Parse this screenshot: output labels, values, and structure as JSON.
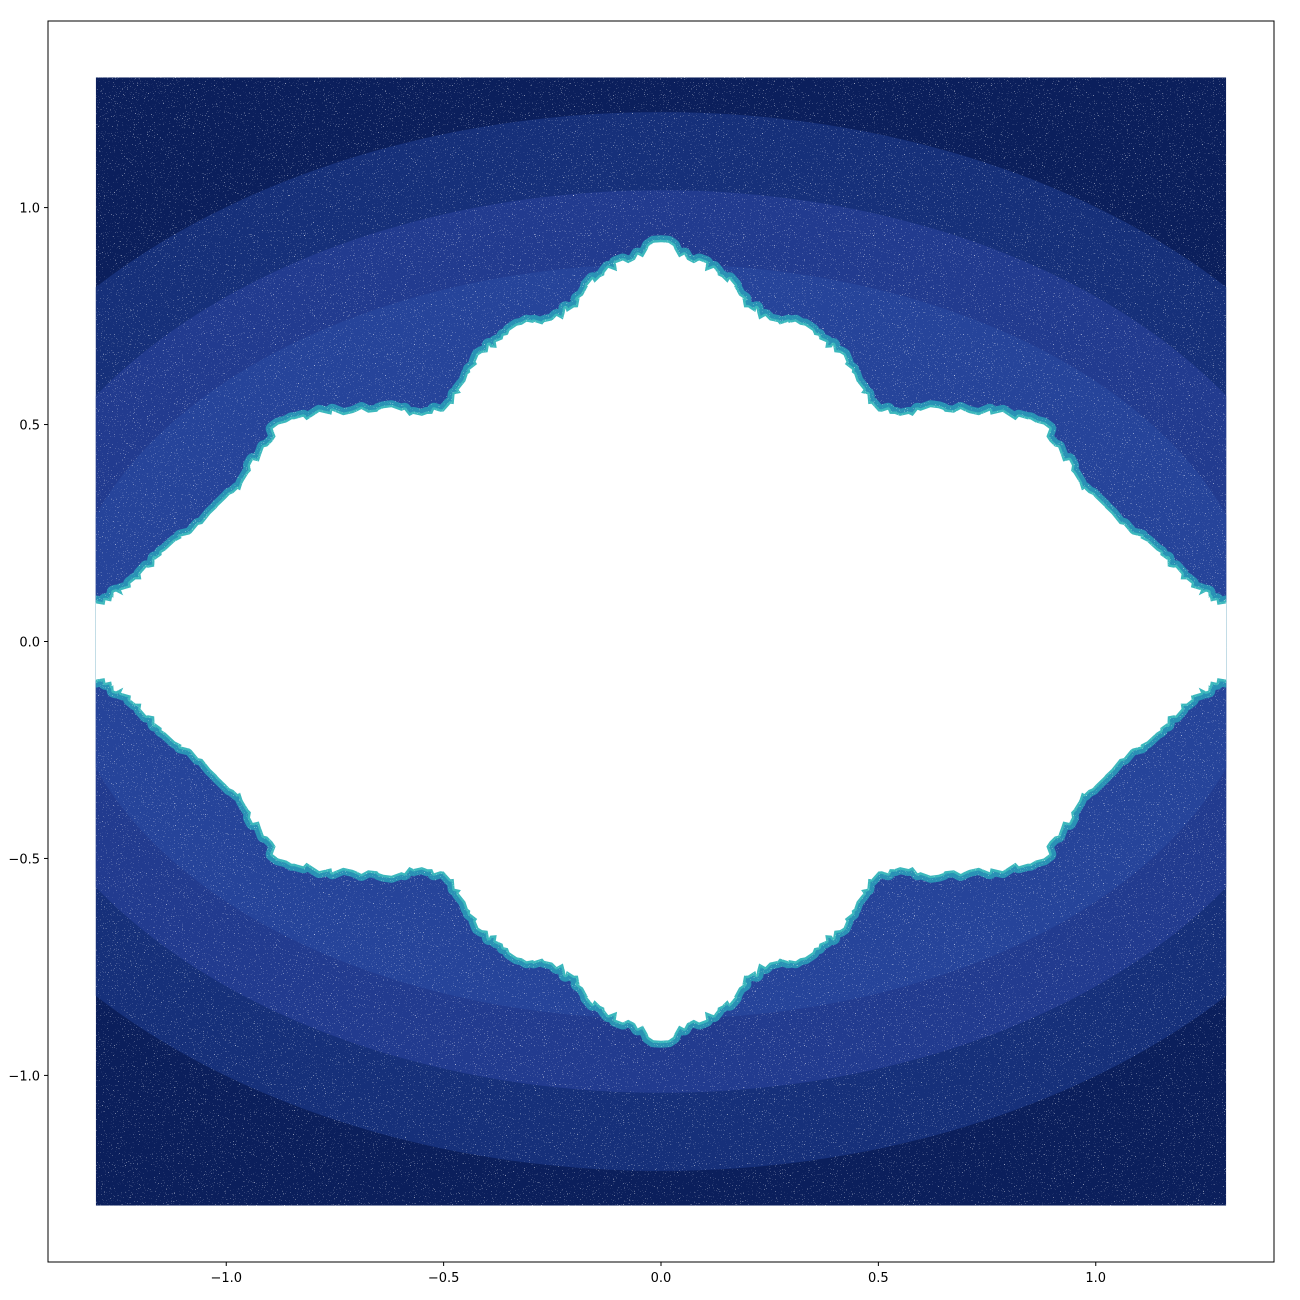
{
  "chart_data": {
    "type": "scatter",
    "title": "",
    "xlabel": "",
    "ylabel": "",
    "xlim": [
      -1.41,
      1.41
    ],
    "ylim": [
      -1.43,
      1.43
    ],
    "x_ticks": [
      -1.0,
      -0.5,
      0.0,
      0.5,
      1.0
    ],
    "y_ticks": [
      -1.0,
      -0.5,
      0.0,
      0.5,
      1.0
    ],
    "x_tick_labels": [
      "−1.0",
      "−0.5",
      "0.0",
      "0.5",
      "1.0"
    ],
    "y_tick_labels": [
      "−1.0",
      "−0.5",
      "0.0",
      "0.5",
      "1.0"
    ],
    "grid": false,
    "point_domain": {
      "x": [
        -1.3,
        1.3
      ],
      "y": [
        -1.3,
        1.3
      ]
    },
    "points_excluded_region": "fractal region around the origin (Julia-like set), symmetric about both axes",
    "boundary_top_right": [
      [
        0.0,
        0.92
      ],
      [
        0.06,
        0.88
      ],
      [
        0.13,
        0.85
      ],
      [
        0.17,
        0.82
      ],
      [
        0.2,
        0.77
      ],
      [
        0.25,
        0.74
      ],
      [
        0.32,
        0.73
      ],
      [
        0.38,
        0.69
      ],
      [
        0.42,
        0.66
      ],
      [
        0.45,
        0.6
      ],
      [
        0.5,
        0.53
      ],
      [
        0.55,
        0.52
      ],
      [
        0.62,
        0.54
      ],
      [
        0.7,
        0.53
      ],
      [
        0.8,
        0.52
      ],
      [
        0.88,
        0.5
      ],
      [
        0.92,
        0.43
      ],
      [
        0.96,
        0.37
      ],
      [
        1.0,
        0.33
      ],
      [
        1.08,
        0.25
      ],
      [
        1.14,
        0.21
      ],
      [
        1.18,
        0.17
      ],
      [
        1.22,
        0.13
      ],
      [
        1.26,
        0.1
      ],
      [
        1.3,
        0.09
      ]
    ],
    "bands_semi_axes": [
      [
        1.75,
        1.22
      ],
      [
        1.55,
        1.04
      ],
      [
        1.38,
        0.87
      ]
    ],
    "colormap": [
      "#0b1f5c",
      "#16307a",
      "#223b8f",
      "#26449a",
      "#2b58a8",
      "#2a9bb8",
      "#3cb8bd"
    ],
    "colors": {
      "background": "#ffffff",
      "axes_frame": "#000000",
      "dark": "#0b1f5c"
    }
  }
}
